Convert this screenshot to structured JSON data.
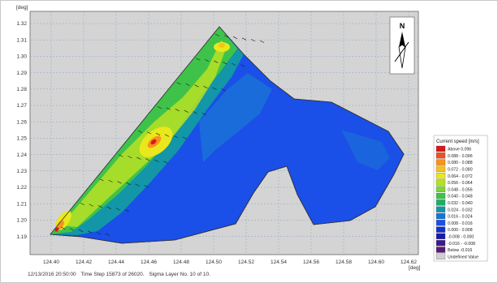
{
  "axes": {
    "y_unit": "[deg]",
    "x_unit": "[deg]",
    "y_ticks": [
      "1.32",
      "1.31",
      "1.30",
      "1.29",
      "1.28",
      "1.27",
      "1.26",
      "1.25",
      "1.24",
      "1.23",
      "1.22",
      "1.21",
      "1.20",
      "1.19"
    ],
    "x_ticks": [
      "124.40",
      "124.42",
      "124.44",
      "124.46",
      "124.48",
      "124.50",
      "124.52",
      "124.54",
      "124.56",
      "124.58",
      "124.60",
      "124.62"
    ]
  },
  "north_arrow": {
    "label": "N",
    "icon": "north-arrow-icon"
  },
  "legend": {
    "title": "Current speed [m/s]",
    "items": [
      {
        "label": "Above   0.096",
        "color": "#d7191c"
      },
      {
        "label": "0.088 - 0.096",
        "color": "#f04e1f"
      },
      {
        "label": "0.080 - 0.088",
        "color": "#f7941d"
      },
      {
        "label": "0.072 - 0.080",
        "color": "#f7c21d"
      },
      {
        "label": "0.064 - 0.072",
        "color": "#e8e81c"
      },
      {
        "label": "0.056 - 0.064",
        "color": "#b8e024"
      },
      {
        "label": "0.048 - 0.056",
        "color": "#7fd43a"
      },
      {
        "label": "0.040 - 0.048",
        "color": "#3fc24a"
      },
      {
        "label": "0.032 - 0.040",
        "color": "#1aae6a"
      },
      {
        "label": "0.024 - 0.032",
        "color": "#1296a8"
      },
      {
        "label": "0.016 - 0.024",
        "color": "#1a73d6"
      },
      {
        "label": "0.008 - 0.016",
        "color": "#1a4fe8"
      },
      {
        "label": "0.000 - 0.008",
        "color": "#1430d0"
      },
      {
        "label": "-0.008 - 0.000",
        "color": "#1a1aa8"
      },
      {
        "label": "-0.016 - -0.008",
        "color": "#3a1a90"
      },
      {
        "label": "Below  -0.016",
        "color": "#5a1a78"
      },
      {
        "label": "Undefined Value",
        "color": "#d0d0d0"
      }
    ]
  },
  "status_bar": {
    "datetime": "12/13/2016 20:50:00",
    "time_step": "Time Step 15873 of 26020.",
    "sigma_layer": "Sigma Layer No. 10 of 10."
  },
  "colors": {
    "plot_background": "#d4d4d4",
    "grid": "#8ea6c8",
    "outline": "#333333"
  }
}
